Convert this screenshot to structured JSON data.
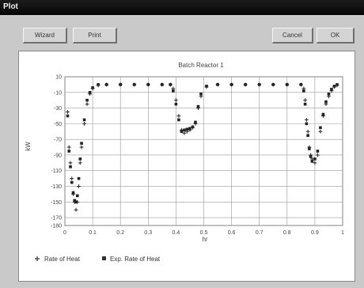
{
  "window": {
    "title": "Plot"
  },
  "toolbar": {
    "wizard_label": "Wizard",
    "print_label": "Print",
    "cancel_label": "Cancel",
    "ok_label": "OK"
  },
  "chart_data": {
    "type": "scatter",
    "title": "Batch Reactor 1",
    "xlabel": "hr",
    "ylabel": "kW",
    "xlim": [
      0,
      1
    ],
    "ylim": [
      -180,
      10
    ],
    "x_ticks": [
      "0",
      "0.1",
      "0.2",
      "0.3",
      "0.4",
      "0.5",
      "0.6",
      "0.7",
      "0.8",
      "0.9",
      "1"
    ],
    "y_ticks": [
      "10",
      "-10",
      "-30",
      "-50",
      "-70",
      "-90",
      "-110",
      "-130",
      "-150",
      "-170",
      "-180"
    ],
    "grid": true,
    "legend_position": "bottom",
    "series": [
      {
        "name": "Rate of Heat",
        "marker": "plus",
        "points": [
          [
            0.01,
            -35
          ],
          [
            0.015,
            -80
          ],
          [
            0.02,
            -100
          ],
          [
            0.025,
            -120
          ],
          [
            0.03,
            -140
          ],
          [
            0.035,
            -150
          ],
          [
            0.04,
            -160
          ],
          [
            0.045,
            -150
          ],
          [
            0.05,
            -130
          ],
          [
            0.055,
            -100
          ],
          [
            0.06,
            -80
          ],
          [
            0.07,
            -50
          ],
          [
            0.08,
            -25
          ],
          [
            0.09,
            -12
          ],
          [
            0.1,
            -5
          ],
          [
            0.12,
            -1
          ],
          [
            0.15,
            0
          ],
          [
            0.2,
            0
          ],
          [
            0.25,
            0
          ],
          [
            0.3,
            0
          ],
          [
            0.35,
            0
          ],
          [
            0.38,
            0
          ],
          [
            0.39,
            -5
          ],
          [
            0.4,
            -20
          ],
          [
            0.41,
            -40
          ],
          [
            0.42,
            -58
          ],
          [
            0.43,
            -62
          ],
          [
            0.44,
            -60
          ],
          [
            0.45,
            -58
          ],
          [
            0.46,
            -55
          ],
          [
            0.47,
            -50
          ],
          [
            0.48,
            -30
          ],
          [
            0.49,
            -15
          ],
          [
            0.51,
            -3
          ],
          [
            0.55,
            0
          ],
          [
            0.6,
            0
          ],
          [
            0.65,
            0
          ],
          [
            0.7,
            0
          ],
          [
            0.75,
            0
          ],
          [
            0.8,
            0
          ],
          [
            0.85,
            0
          ],
          [
            0.86,
            -5
          ],
          [
            0.865,
            -20
          ],
          [
            0.87,
            -45
          ],
          [
            0.875,
            -60
          ],
          [
            0.88,
            -80
          ],
          [
            0.885,
            -90
          ],
          [
            0.89,
            -95
          ],
          [
            0.9,
            -100
          ],
          [
            0.91,
            -90
          ],
          [
            0.92,
            -60
          ],
          [
            0.93,
            -40
          ],
          [
            0.94,
            -25
          ],
          [
            0.95,
            -15
          ],
          [
            0.96,
            -8
          ],
          [
            0.97,
            -3
          ],
          [
            0.98,
            -1
          ]
        ]
      },
      {
        "name": "Exp. Rate of Heat",
        "marker": "square",
        "points": [
          [
            0.01,
            -40
          ],
          [
            0.015,
            -85
          ],
          [
            0.02,
            -105
          ],
          [
            0.025,
            -125
          ],
          [
            0.03,
            -138
          ],
          [
            0.035,
            -148
          ],
          [
            0.04,
            -150
          ],
          [
            0.045,
            -142
          ],
          [
            0.05,
            -120
          ],
          [
            0.055,
            -95
          ],
          [
            0.06,
            -75
          ],
          [
            0.07,
            -45
          ],
          [
            0.08,
            -20
          ],
          [
            0.09,
            -10
          ],
          [
            0.1,
            -4
          ],
          [
            0.12,
            0
          ],
          [
            0.15,
            0
          ],
          [
            0.2,
            0
          ],
          [
            0.25,
            0
          ],
          [
            0.3,
            0
          ],
          [
            0.35,
            0
          ],
          [
            0.38,
            0
          ],
          [
            0.39,
            -8
          ],
          [
            0.4,
            -25
          ],
          [
            0.41,
            -45
          ],
          [
            0.42,
            -60
          ],
          [
            0.43,
            -58
          ],
          [
            0.44,
            -57
          ],
          [
            0.45,
            -56
          ],
          [
            0.46,
            -54
          ],
          [
            0.47,
            -48
          ],
          [
            0.48,
            -28
          ],
          [
            0.49,
            -12
          ],
          [
            0.51,
            -2
          ],
          [
            0.55,
            0
          ],
          [
            0.6,
            0
          ],
          [
            0.65,
            0
          ],
          [
            0.7,
            0
          ],
          [
            0.75,
            0
          ],
          [
            0.8,
            0
          ],
          [
            0.85,
            0
          ],
          [
            0.86,
            -8
          ],
          [
            0.865,
            -25
          ],
          [
            0.87,
            -50
          ],
          [
            0.875,
            -65
          ],
          [
            0.88,
            -82
          ],
          [
            0.885,
            -92
          ],
          [
            0.89,
            -98
          ],
          [
            0.9,
            -95
          ],
          [
            0.91,
            -85
          ],
          [
            0.92,
            -55
          ],
          [
            0.93,
            -38
          ],
          [
            0.94,
            -22
          ],
          [
            0.95,
            -12
          ],
          [
            0.96,
            -6
          ],
          [
            0.97,
            -2
          ],
          [
            0.98,
            0
          ]
        ]
      }
    ]
  }
}
